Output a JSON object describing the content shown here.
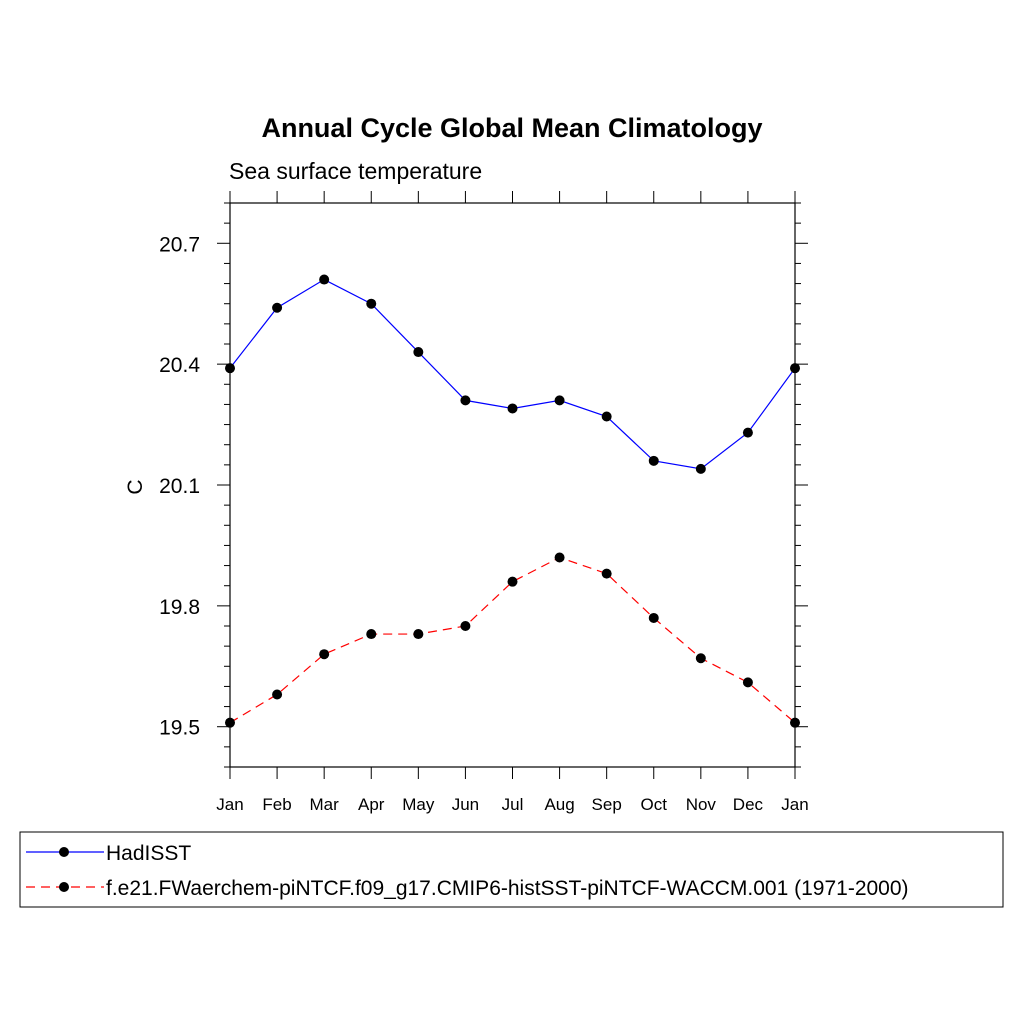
{
  "chart_data": {
    "type": "line",
    "title": "Annual Cycle Global Mean Climatology",
    "subtitle": "Sea surface temperature",
    "xlabel": "",
    "ylabel": "C",
    "categories": [
      "Jan",
      "Feb",
      "Mar",
      "Apr",
      "May",
      "Jun",
      "Jul",
      "Aug",
      "Sep",
      "Oct",
      "Nov",
      "Dec",
      "Jan"
    ],
    "ylim": [
      19.4,
      20.8
    ],
    "yticks": [
      "20.7",
      "20.4",
      "20.1",
      "19.8",
      "19.5"
    ],
    "grid": false,
    "legend_position": "bottom",
    "series": [
      {
        "name": "HadISST",
        "color": "#0000ff",
        "dash": "solid",
        "marker": "filled-circle",
        "values": [
          20.39,
          20.54,
          20.61,
          20.55,
          20.43,
          20.31,
          20.29,
          20.31,
          20.27,
          20.16,
          20.14,
          20.23,
          20.39
        ]
      },
      {
        "name": "f.e21.FWaerchem-piNTCF.f09_g17.CMIP6-histSST-piNTCF-WACCM.001 (1971-2000)",
        "color": "#ff0000",
        "dash": "dashed",
        "marker": "filled-circle",
        "values": [
          19.51,
          19.58,
          19.68,
          19.73,
          19.73,
          19.75,
          19.86,
          19.92,
          19.88,
          19.77,
          19.67,
          19.61,
          19.51
        ]
      }
    ]
  }
}
